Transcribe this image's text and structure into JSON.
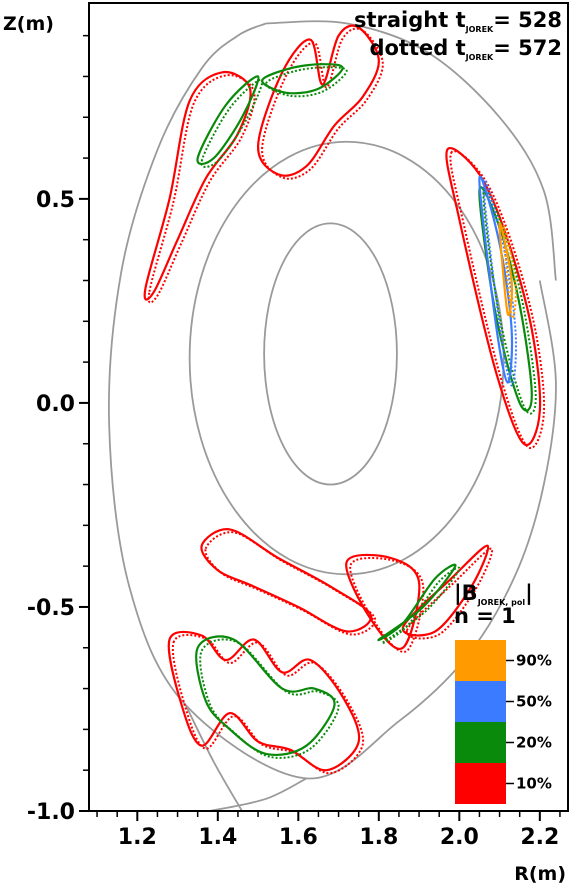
{
  "chart_data": {
    "type": "line",
    "xlabel": "R(m)",
    "ylabel": "Z(m)",
    "xlim": [
      1.08,
      2.27
    ],
    "ylim": [
      -1.0,
      0.98
    ],
    "x_ticks": [
      {
        "v": 1.2,
        "label": "1.2"
      },
      {
        "v": 1.4,
        "label": "1.4"
      },
      {
        "v": 1.6,
        "label": "1.6"
      },
      {
        "v": 1.8,
        "label": "1.8"
      },
      {
        "v": 2.0,
        "label": "2.0"
      },
      {
        "v": 2.2,
        "label": "2.2"
      }
    ],
    "y_ticks": [
      {
        "v": 0.5,
        "label": "0.5"
      },
      {
        "v": 0.0,
        "label": "0.0"
      },
      {
        "v": -0.5,
        "label": "-0.5"
      },
      {
        "v": -1.0,
        "label": "-1.0"
      }
    ],
    "annotation": {
      "line1_prefix": "straight ",
      "line2_prefix": "dotted ",
      "symbol": "t",
      "subscript": "JOREK",
      "line1_value": "= 528",
      "line2_value": "= 572"
    },
    "legend_title": {
      "bar": "|",
      "symbol": "B",
      "subscript": "JOREK, pol",
      "bar_end": "|",
      "line2": "n = 1"
    },
    "legend": [
      {
        "label": "90%",
        "color": "#ff9a00"
      },
      {
        "label": "50%",
        "color": "#3a7bff"
      },
      {
        "label": "20%",
        "color": "#0a8a0a"
      },
      {
        "label": "10%",
        "color": "#ff0000"
      }
    ],
    "flux_surfaces": [
      {
        "type": "ellipse",
        "cx": 1.68,
        "cz": 0.12,
        "rr": 0.165,
        "rz": 0.32
      },
      {
        "type": "ellipse",
        "cx": 1.72,
        "cz": 0.11,
        "rr": 0.39,
        "rz": 0.53
      },
      {
        "type": "separatrix",
        "r": [
          2.2,
          2.24,
          2.21,
          2.14,
          2.02,
          1.85,
          1.62,
          1.32,
          1.18,
          1.13,
          1.16,
          1.25,
          1.36,
          1.45,
          1.52
        ],
        "z": [
          0.3,
          0.05,
          -0.2,
          -0.42,
          -0.62,
          -0.78,
          -0.92,
          -0.74,
          -0.45,
          -0.05,
          0.32,
          0.62,
          0.82,
          0.9,
          0.93
        ]
      },
      {
        "type": "outer_wall",
        "r": [
          1.52,
          1.72,
          1.92,
          2.1,
          2.21,
          2.24
        ],
        "z": [
          0.93,
          0.93,
          0.86,
          0.7,
          0.52,
          0.3
        ]
      },
      {
        "type": "divertor_leg",
        "r": [
          1.32,
          1.39,
          1.46
        ],
        "z": [
          -0.74,
          -0.88,
          -1.0
        ]
      },
      {
        "type": "divertor_leg",
        "r": [
          1.62,
          1.52,
          1.38
        ],
        "z": [
          -0.92,
          -0.97,
          -1.0
        ]
      }
    ],
    "contours": [
      {
        "level": "10%",
        "color": "#ff0000",
        "r": [
          1.22,
          1.28,
          1.33,
          1.41,
          1.48,
          1.45,
          1.37,
          1.3,
          1.24,
          1.22
        ],
        "z": [
          0.28,
          0.5,
          0.74,
          0.81,
          0.77,
          0.66,
          0.55,
          0.4,
          0.27,
          0.28
        ]
      },
      {
        "level": "10%",
        "color": "#ff0000",
        "r": [
          1.5,
          1.56,
          1.63,
          1.66,
          1.7,
          1.75,
          1.8,
          1.76,
          1.69,
          1.62,
          1.55,
          1.5
        ],
        "z": [
          0.63,
          0.81,
          0.89,
          0.78,
          0.9,
          0.92,
          0.84,
          0.75,
          0.68,
          0.58,
          0.56,
          0.63
        ]
      },
      {
        "level": "10%",
        "color": "#ff0000",
        "r": [
          1.97,
          2.05,
          2.12,
          2.18,
          2.2,
          2.16,
          2.09,
          2.0,
          1.97
        ],
        "z": [
          0.62,
          0.56,
          0.4,
          0.18,
          -0.02,
          -0.1,
          0.08,
          0.45,
          0.62
        ]
      },
      {
        "level": "10%",
        "color": "#ff0000",
        "r": [
          1.36,
          1.43,
          1.55,
          1.68,
          1.78,
          1.72,
          1.6,
          1.49,
          1.4,
          1.36
        ],
        "z": [
          -0.35,
          -0.31,
          -0.38,
          -0.45,
          -0.52,
          -0.56,
          -0.5,
          -0.45,
          -0.41,
          -0.35
        ]
      },
      {
        "level": "10%",
        "color": "#ff0000",
        "r": [
          1.72,
          1.83,
          1.9,
          1.86,
          1.78,
          1.72
        ],
        "z": [
          -0.39,
          -0.38,
          -0.44,
          -0.6,
          -0.53,
          -0.39
        ]
      },
      {
        "level": "10%",
        "color": "#ff0000",
        "r": [
          1.28,
          1.36,
          1.42,
          1.49,
          1.56,
          1.63,
          1.71,
          1.75,
          1.67,
          1.58,
          1.5,
          1.43,
          1.36,
          1.31,
          1.28
        ],
        "z": [
          -0.58,
          -0.57,
          -0.63,
          -0.58,
          -0.66,
          -0.63,
          -0.72,
          -0.83,
          -0.9,
          -0.85,
          -0.83,
          -0.76,
          -0.84,
          -0.74,
          -0.58
        ]
      },
      {
        "level": "10%",
        "color": "#ff0000",
        "r": [
          1.86,
          1.98,
          2.07,
          2.03,
          1.94,
          1.86
        ],
        "z": [
          -0.55,
          -0.43,
          -0.35,
          -0.45,
          -0.56,
          -0.55
        ]
      },
      {
        "level": "20%",
        "color": "#0a8a0a",
        "r": [
          1.35,
          1.42,
          1.5,
          1.46,
          1.39,
          1.35
        ],
        "z": [
          0.6,
          0.73,
          0.8,
          0.7,
          0.6,
          0.6
        ]
      },
      {
        "level": "20%",
        "color": "#0a8a0a",
        "r": [
          1.51,
          1.58,
          1.66,
          1.71,
          1.65,
          1.57,
          1.51
        ],
        "z": [
          0.79,
          0.82,
          0.83,
          0.82,
          0.77,
          0.76,
          0.79
        ]
      },
      {
        "level": "20%",
        "color": "#0a8a0a",
        "r": [
          2.05,
          2.1,
          2.15,
          2.18,
          2.15,
          2.09,
          2.05
        ],
        "z": [
          0.52,
          0.43,
          0.24,
          0.02,
          0.0,
          0.22,
          0.52
        ]
      },
      {
        "level": "20%",
        "color": "#0a8a0a",
        "r": [
          1.35,
          1.44,
          1.56,
          1.64,
          1.69,
          1.62,
          1.52,
          1.43,
          1.37,
          1.35
        ],
        "z": [
          -0.6,
          -0.58,
          -0.7,
          -0.7,
          -0.74,
          -0.84,
          -0.86,
          -0.8,
          -0.73,
          -0.6
        ]
      },
      {
        "level": "20%",
        "color": "#0a8a0a",
        "r": [
          1.8,
          1.91,
          1.99,
          1.94,
          1.86,
          1.8
        ],
        "z": [
          -0.58,
          -0.5,
          -0.4,
          -0.43,
          -0.54,
          -0.58
        ]
      },
      {
        "level": "50%",
        "color": "#3a7bff",
        "r": [
          2.05,
          2.1,
          2.13,
          2.12,
          2.09,
          2.05
        ],
        "z": [
          0.55,
          0.39,
          0.18,
          0.05,
          0.2,
          0.55
        ]
      },
      {
        "level": "90%",
        "color": "#ff9a00",
        "r": [
          2.1,
          2.13,
          2.12,
          2.1
        ],
        "z": [
          0.44,
          0.3,
          0.22,
          0.44
        ]
      }
    ]
  }
}
